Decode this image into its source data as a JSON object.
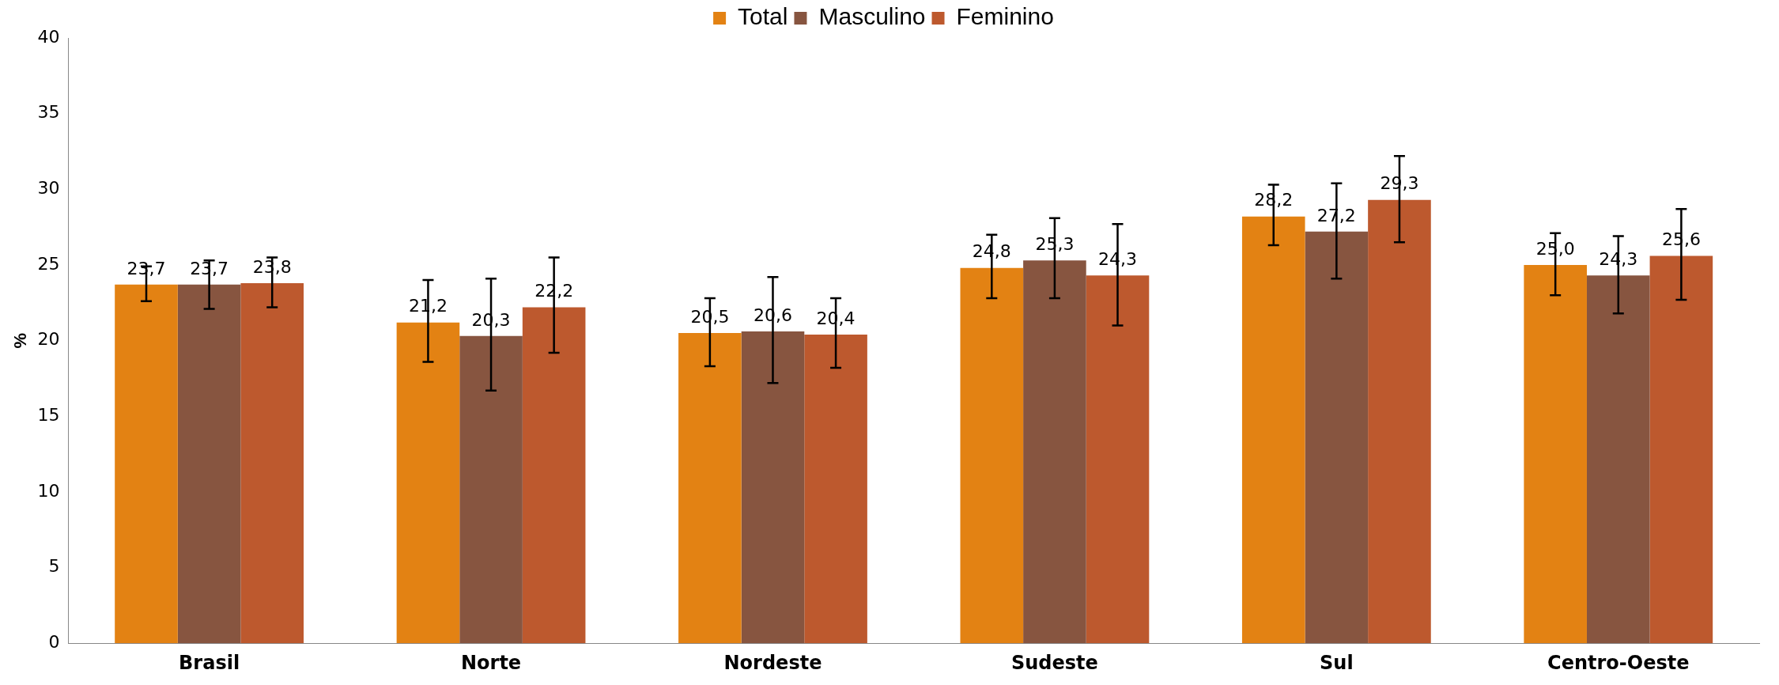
{
  "chart_data": {
    "type": "bar",
    "ylabel": "%",
    "categories": [
      "Brasil",
      "Norte",
      "Nordeste",
      "Sudeste",
      "Sul",
      "Centro-Oeste"
    ],
    "series": [
      {
        "name": "Total",
        "color": "#e38213",
        "values": [
          23.7,
          21.2,
          20.5,
          24.8,
          28.2,
          25.0
        ],
        "value_labels": [
          "23,7",
          "21,2",
          "20,5",
          "24,8",
          "28,2",
          "25,0"
        ],
        "errors": [
          [
            22.6,
            24.9
          ],
          [
            18.6,
            24.0
          ],
          [
            18.3,
            22.8
          ],
          [
            22.8,
            27.0
          ],
          [
            26.3,
            30.3
          ],
          [
            23.0,
            27.1
          ]
        ]
      },
      {
        "name": "Masculino",
        "color": "#875540",
        "values": [
          23.7,
          20.3,
          20.6,
          25.3,
          27.2,
          24.3
        ],
        "value_labels": [
          "23,7",
          "20,3",
          "20,6",
          "25,3",
          "27,2",
          "24,3"
        ],
        "errors": [
          [
            22.1,
            25.3
          ],
          [
            16.7,
            24.1
          ],
          [
            17.2,
            24.2
          ],
          [
            22.8,
            28.1
          ],
          [
            24.1,
            30.4
          ],
          [
            21.8,
            26.9
          ]
        ]
      },
      {
        "name": "Feminino",
        "color": "#bd592e",
        "values": [
          23.8,
          22.2,
          20.4,
          24.3,
          29.3,
          25.6
        ],
        "value_labels": [
          "23,8",
          "22,2",
          "20,4",
          "24,3",
          "29,3",
          "25,6"
        ],
        "errors": [
          [
            22.2,
            25.5
          ],
          [
            19.2,
            25.5
          ],
          [
            18.2,
            22.8
          ],
          [
            21.0,
            27.7
          ],
          [
            26.5,
            32.2
          ],
          [
            22.7,
            28.7
          ]
        ]
      }
    ],
    "ylim": [
      0,
      40
    ],
    "yticks": [
      0,
      5,
      10,
      15,
      20,
      25,
      30,
      35,
      40
    ],
    "grid": false,
    "legend": "top"
  }
}
